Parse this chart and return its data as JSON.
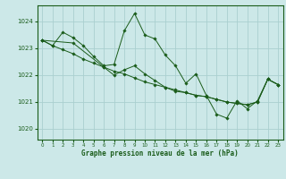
{
  "xlabel": "Graphe pression niveau de la mer (hPa)",
  "background_color": "#cce8e8",
  "grid_color": "#aacfcf",
  "line_color": "#1a5c1a",
  "marker_color": "#1a5c1a",
  "xlim": [
    -0.5,
    23.5
  ],
  "ylim": [
    1019.6,
    1024.6
  ],
  "yticks": [
    1020,
    1021,
    1022,
    1023,
    1024
  ],
  "xticks": [
    0,
    1,
    2,
    3,
    4,
    5,
    6,
    7,
    8,
    9,
    10,
    11,
    12,
    13,
    14,
    15,
    16,
    17,
    18,
    19,
    20,
    21,
    22,
    23
  ],
  "series": [
    {
      "x": [
        0,
        1,
        2,
        3,
        4,
        5,
        6,
        7,
        8,
        9,
        10,
        11,
        12,
        13,
        14,
        15,
        16,
        17,
        18,
        19,
        20,
        21,
        22,
        23
      ],
      "y": [
        1023.3,
        1023.1,
        1023.6,
        1023.4,
        1023.1,
        1022.7,
        1022.35,
        1022.4,
        1023.65,
        1024.3,
        1023.5,
        1023.35,
        1022.75,
        1022.35,
        1021.7,
        1022.05,
        1021.25,
        1020.55,
        1020.4,
        1021.05,
        1020.75,
        1021.05,
        1021.85,
        1021.65
      ]
    },
    {
      "x": [
        0,
        1,
        2,
        3,
        4,
        5,
        6,
        7,
        8,
        9,
        10,
        11,
        12,
        13,
        14,
        15,
        16,
        17,
        18,
        19,
        20,
        21,
        22,
        23
      ],
      "y": [
        1023.3,
        1023.1,
        1022.95,
        1022.8,
        1022.6,
        1022.45,
        1022.3,
        1022.15,
        1022.05,
        1021.9,
        1021.75,
        1021.65,
        1021.55,
        1021.45,
        1021.35,
        1021.25,
        1021.2,
        1021.1,
        1021.0,
        1020.95,
        1020.9,
        1021.0,
        1021.85,
        1021.65
      ]
    },
    {
      "x": [
        0,
        3,
        6,
        7,
        8,
        9,
        10,
        11,
        12,
        13,
        14,
        15,
        16,
        17,
        18,
        19,
        20,
        21,
        22,
        23
      ],
      "y": [
        1023.3,
        1023.2,
        1022.3,
        1022.0,
        1022.2,
        1022.35,
        1022.05,
        1021.8,
        1021.55,
        1021.4,
        1021.35,
        1021.25,
        1021.2,
        1021.1,
        1021.0,
        1020.95,
        1020.9,
        1021.0,
        1021.85,
        1021.65
      ]
    }
  ]
}
